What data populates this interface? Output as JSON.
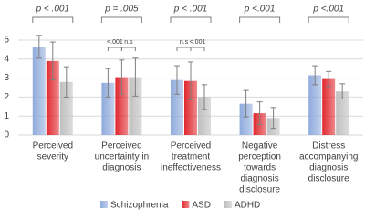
{
  "chart_data": {
    "type": "bar",
    "categories": [
      [
        "Perceived",
        "severity"
      ],
      [
        "Perceived",
        "uncertainty in",
        "diagnosis"
      ],
      [
        "Perceived",
        "treatment",
        "ineffectiveness"
      ],
      [
        "Negative",
        "perception",
        "towards",
        "diagnosis",
        "disclosure"
      ],
      [
        "Distress",
        "accompanying",
        "diagnosis",
        "disclosure"
      ]
    ],
    "series": [
      {
        "name": "Schizophrenia",
        "color": "#8faadc",
        "values": [
          4.65,
          2.75,
          2.9,
          1.65,
          3.15
        ],
        "errors": [
          0.6,
          0.75,
          0.75,
          0.7,
          0.5
        ]
      },
      {
        "name": "ASD",
        "color": "#e0282e",
        "values": [
          3.9,
          3.05,
          2.85,
          1.15,
          2.95
        ],
        "errors": [
          1.0,
          0.9,
          1.0,
          0.6,
          0.4
        ]
      },
      {
        "name": "ADHD",
        "color": "#bfbfbf",
        "values": [
          2.8,
          3.05,
          2.0,
          0.9,
          2.3
        ],
        "errors": [
          0.8,
          1.0,
          0.65,
          0.55,
          0.4
        ]
      }
    ],
    "group_tests": [
      "p < .001",
      "p = .005",
      "p < .001",
      "p <.001",
      "p <.001"
    ],
    "pair_tests": [
      [],
      [
        "<.001",
        "n.s"
      ],
      [
        "n.s",
        "<.001"
      ],
      [],
      []
    ],
    "ylim": [
      0,
      5
    ],
    "yticks": [
      0,
      1,
      2,
      3,
      4,
      5
    ],
    "grid": true,
    "legend": "bottom"
  }
}
